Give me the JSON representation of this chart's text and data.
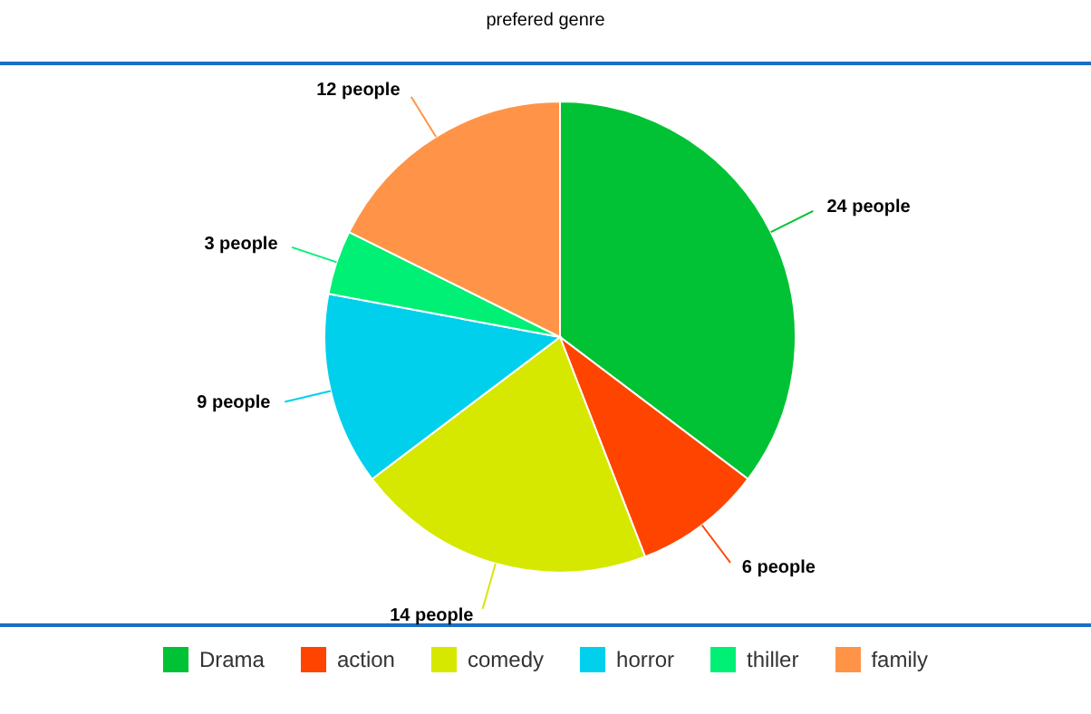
{
  "chart_data": {
    "type": "pie",
    "title": "prefered genre",
    "categories": [
      "Drama",
      "action",
      "comedy",
      "horror",
      "thiller",
      "family"
    ],
    "values": [
      24,
      6,
      14,
      9,
      3,
      12
    ],
    "colors": [
      "#00c234",
      "#ff4400",
      "#d6e800",
      "#00d0ec",
      "#00f075",
      "#ff9448"
    ],
    "value_labels": [
      "24 people",
      "6 people",
      "14 people",
      "9 people",
      "3 people",
      "12 people"
    ],
    "legend": "bottom"
  }
}
